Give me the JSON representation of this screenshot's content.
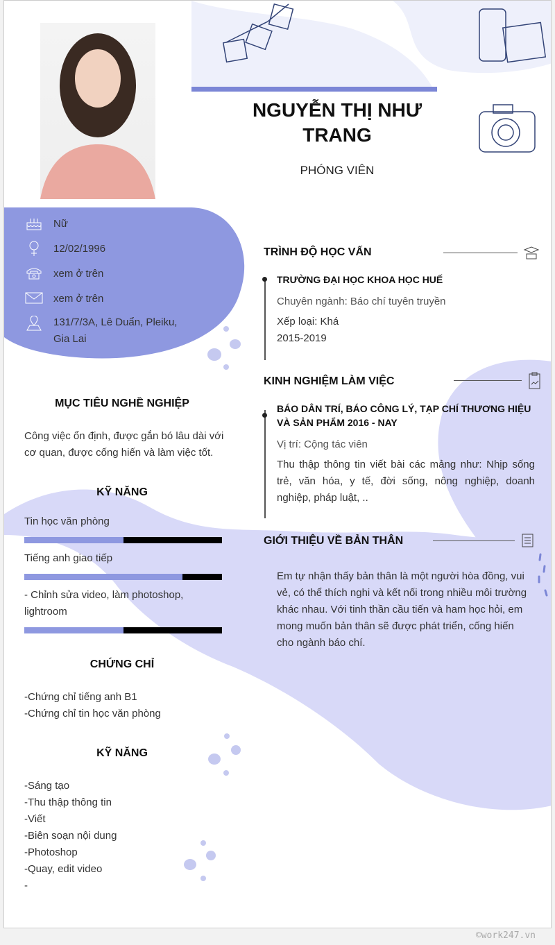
{
  "header": {
    "name": "NGUYỄN THỊ NHƯ TRANG",
    "role": "PHÓNG VIÊN"
  },
  "contact": [
    {
      "icon": "birthday-cake-icon",
      "value": "Nữ"
    },
    {
      "icon": "female-icon",
      "value": "12/02/1996"
    },
    {
      "icon": "telephone-icon",
      "value": "xem ở trên"
    },
    {
      "icon": "envelope-icon",
      "value": "xem ở trên"
    },
    {
      "icon": "map-pin-icon",
      "value": "131/7/3A, Lê  Duẩn, Pleiku,",
      "value2": "Gia Lai"
    }
  ],
  "objective": {
    "title": "MỤC TIÊU NGHỀ NGHIỆP",
    "line1": "Công việc ổn định, được gắn bó lâu dài với",
    "line2": "cơ quan,  được cống hiến và làm việc tốt."
  },
  "skills": {
    "title": "KỸ NĂNG",
    "items": [
      {
        "label": "Tin học văn phòng",
        "percent": 50
      },
      {
        "label": "Tiếng anh giao tiếp",
        "percent": 80
      },
      {
        "label": "- Chỉnh sửa video, làm photoshop,",
        "label2": "lightroom",
        "percent": 50
      }
    ]
  },
  "certificates": {
    "title": "CHỨNG CHỈ",
    "items": [
      "-Chứng chỉ tiếng anh B1",
      "-Chứng chỉ tin học văn phòng"
    ]
  },
  "skills2": {
    "title": "KỸ NĂNG",
    "items": [
      "-Sáng tạo",
      "-Thu thập thông tin",
      "-Viết",
      "-Biên soạn nội dung",
      "-Photoshop",
      "-Quay, edit video",
      "-"
    ]
  },
  "education": {
    "title": "TRÌNH ĐỘ HỌC VẤN",
    "icon": "graduation-cap-icon",
    "school": "TRƯỜNG ĐẠI HỌC KHOA HỌC HUẾ",
    "major": "Chuyên ngành: Báo chí tuyên truyền",
    "grade": "Xếp loại: Khá",
    "years": "2015-2019"
  },
  "experience": {
    "title": "KINH NGHIỆM LÀM VIỆC",
    "icon": "clipboard-chart-icon",
    "company": "BÁO DÂN TRÍ, BÁO CÔNG LÝ, TẠP CHÍ THƯƠNG HIỆU VÀ SẢN PHẨM 2016 - NAY",
    "position": "Vị trí: Cộng tác viên",
    "desc": "Thu thập thông tin viết bài các mảng như: Nhịp sống trẻ, văn hóa, y tế, đời sống, nông nghiệp, doanh nghiệp, pháp luật, .."
  },
  "about": {
    "title": "GIỚI THIỆU VỀ BẢN THÂN",
    "icon": "document-icon",
    "text": "Em tự nhận thấy bản thân là một người hòa đồng, vui vẻ, có thể thích nghi và kết nối trong nhiều môi trường khác nhau. Với tinh thần cầu tiến và ham học hỏi, em mong muốn bản thân sẽ được phát triển, cống hiến cho ngành báo chí."
  },
  "watermark": "©work247.vn",
  "colors": {
    "accent": "#8e98e0",
    "light_blob": "#d8d9f8",
    "top_blob": "#eef0fb"
  }
}
